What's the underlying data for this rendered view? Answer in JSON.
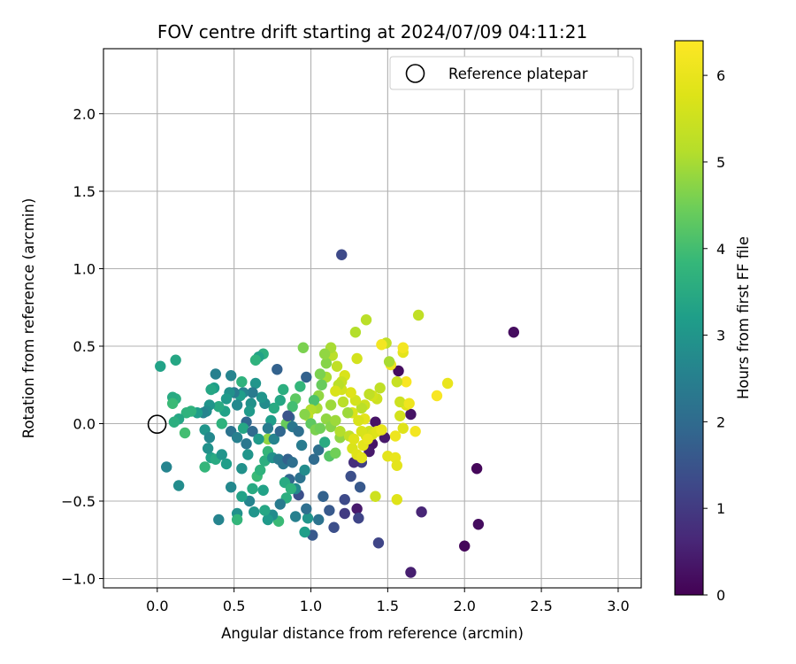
{
  "chart_data": {
    "type": "scatter",
    "title": "FOV centre drift starting at 2024/07/09 04:11:21",
    "xlabel": "Angular distance from reference (arcmin)",
    "ylabel": "Rotation from reference (arcmin)",
    "xlim": [
      -0.35,
      3.15
    ],
    "ylim": [
      -1.06,
      2.42
    ],
    "xticks": [
      "0.0",
      "0.5",
      "1.0",
      "1.5",
      "2.0",
      "2.5",
      "3.0"
    ],
    "xtick_values": [
      0.0,
      0.5,
      1.0,
      1.5,
      2.0,
      2.5,
      3.0
    ],
    "yticks": [
      "−1.0",
      "−0.5",
      "0.0",
      "0.5",
      "1.0",
      "1.5",
      "2.0"
    ],
    "ytick_values": [
      -1.0,
      -0.5,
      0.0,
      0.5,
      1.0,
      1.5,
      2.0
    ],
    "grid": true,
    "legend": {
      "position": "top-right",
      "entries": [
        {
          "label": "Reference platepar",
          "marker": "open-circle"
        }
      ]
    },
    "reference_point": {
      "x": 0.0,
      "y": 0.0
    },
    "colorbar": {
      "label": "Hours from first FF file",
      "colormap": "viridis",
      "range": [
        0,
        6.4
      ],
      "ticks": [
        "0",
        "1",
        "2",
        "3",
        "4",
        "5",
        "6"
      ],
      "tick_values": [
        0,
        1,
        2,
        3,
        4,
        5,
        6
      ]
    },
    "points": [
      {
        "x": 1.2,
        "y": 1.09,
        "c": 1.3
      },
      {
        "x": 2.32,
        "y": 0.59,
        "c": 0.2
      },
      {
        "x": 2.08,
        "y": -0.29,
        "c": 0.1
      },
      {
        "x": 2.09,
        "y": -0.65,
        "c": 0.2
      },
      {
        "x": 2.0,
        "y": -0.79,
        "c": 0.1
      },
      {
        "x": 1.65,
        "y": -0.96,
        "c": 0.5
      },
      {
        "x": 1.72,
        "y": -0.57,
        "c": 0.6
      },
      {
        "x": 1.44,
        "y": -0.77,
        "c": 1.2
      },
      {
        "x": 1.65,
        "y": 0.06,
        "c": 0.3
      },
      {
        "x": 1.57,
        "y": 0.34,
        "c": 0.2
      },
      {
        "x": 1.48,
        "y": -0.09,
        "c": 0.4
      },
      {
        "x": 1.4,
        "y": -0.13,
        "c": 0.3
      },
      {
        "x": 1.38,
        "y": -0.18,
        "c": 0.4
      },
      {
        "x": 1.42,
        "y": 0.01,
        "c": 0.3
      },
      {
        "x": 1.3,
        "y": -0.55,
        "c": 0.4
      },
      {
        "x": 1.31,
        "y": -0.61,
        "c": 1.2
      },
      {
        "x": 1.22,
        "y": -0.58,
        "c": 1.0
      },
      {
        "x": 1.32,
        "y": -0.41,
        "c": 1.6
      },
      {
        "x": 1.26,
        "y": -0.34,
        "c": 1.4
      },
      {
        "x": 1.33,
        "y": -0.25,
        "c": 1.1
      },
      {
        "x": 1.28,
        "y": -0.25,
        "c": 0.8
      },
      {
        "x": 1.22,
        "y": -0.49,
        "c": 1.3
      },
      {
        "x": 1.15,
        "y": -0.67,
        "c": 1.4
      },
      {
        "x": 1.12,
        "y": -0.56,
        "c": 1.6
      },
      {
        "x": 1.08,
        "y": -0.47,
        "c": 1.8
      },
      {
        "x": 1.05,
        "y": -0.62,
        "c": 2.2
      },
      {
        "x": 1.01,
        "y": -0.72,
        "c": 1.6
      },
      {
        "x": 0.96,
        "y": -0.7,
        "c": 3.2
      },
      {
        "x": 0.9,
        "y": -0.6,
        "c": 2.5
      },
      {
        "x": 0.98,
        "y": -0.61,
        "c": 3.0
      },
      {
        "x": 0.97,
        "y": -0.55,
        "c": 2.1
      },
      {
        "x": 0.92,
        "y": -0.46,
        "c": 1.4
      },
      {
        "x": 0.9,
        "y": -0.42,
        "c": 2.7
      },
      {
        "x": 0.86,
        "y": -0.36,
        "c": 1.9
      },
      {
        "x": 0.84,
        "y": -0.48,
        "c": 3.6
      },
      {
        "x": 0.8,
        "y": -0.52,
        "c": 2.4
      },
      {
        "x": 0.79,
        "y": -0.63,
        "c": 3.9
      },
      {
        "x": 0.75,
        "y": -0.59,
        "c": 2.8
      },
      {
        "x": 0.72,
        "y": -0.62,
        "c": 3.1
      },
      {
        "x": 0.7,
        "y": -0.56,
        "c": 3.4
      },
      {
        "x": 0.63,
        "y": -0.57,
        "c": 3.0
      },
      {
        "x": 0.6,
        "y": -0.5,
        "c": 2.6
      },
      {
        "x": 0.55,
        "y": -0.47,
        "c": 3.3
      },
      {
        "x": 0.52,
        "y": -0.58,
        "c": 2.9
      },
      {
        "x": 0.52,
        "y": -0.62,
        "c": 3.8
      },
      {
        "x": 0.4,
        "y": -0.62,
        "c": 2.6
      },
      {
        "x": 0.48,
        "y": -0.41,
        "c": 2.7
      },
      {
        "x": 0.55,
        "y": -0.29,
        "c": 2.9
      },
      {
        "x": 0.59,
        "y": -0.2,
        "c": 3.0
      },
      {
        "x": 0.62,
        "y": -0.42,
        "c": 3.5
      },
      {
        "x": 0.65,
        "y": -0.34,
        "c": 3.9
      },
      {
        "x": 0.67,
        "y": -0.3,
        "c": 3.7
      },
      {
        "x": 0.69,
        "y": -0.43,
        "c": 3.3
      },
      {
        "x": 0.7,
        "y": -0.24,
        "c": 3.6
      },
      {
        "x": 0.72,
        "y": -0.18,
        "c": 3.8
      },
      {
        "x": 0.75,
        "y": -0.22,
        "c": 2.9
      },
      {
        "x": 0.79,
        "y": -0.23,
        "c": 2.4
      },
      {
        "x": 0.82,
        "y": -0.26,
        "c": 2.3
      },
      {
        "x": 0.85,
        "y": -0.23,
        "c": 1.8
      },
      {
        "x": 0.88,
        "y": -0.25,
        "c": 2.1
      },
      {
        "x": 0.83,
        "y": -0.38,
        "c": 3.5
      },
      {
        "x": 0.87,
        "y": -0.42,
        "c": 3.7
      },
      {
        "x": 0.93,
        "y": -0.35,
        "c": 2.2
      },
      {
        "x": 0.96,
        "y": -0.3,
        "c": 2.8
      },
      {
        "x": 1.02,
        "y": -0.23,
        "c": 2.0
      },
      {
        "x": 1.05,
        "y": -0.17,
        "c": 2.1
      },
      {
        "x": 1.09,
        "y": -0.12,
        "c": 3.5
      },
      {
        "x": 1.12,
        "y": -0.21,
        "c": 4.2
      },
      {
        "x": 1.16,
        "y": -0.19,
        "c": 4.5
      },
      {
        "x": 1.19,
        "y": -0.09,
        "c": 4.8
      },
      {
        "x": 1.25,
        "y": -0.08,
        "c": 5.3
      },
      {
        "x": 1.27,
        "y": -0.16,
        "c": 5.7
      },
      {
        "x": 1.3,
        "y": -0.2,
        "c": 5.8
      },
      {
        "x": 1.33,
        "y": -0.22,
        "c": 5.9
      },
      {
        "x": 1.36,
        "y": -0.08,
        "c": 5.6
      },
      {
        "x": 1.38,
        "y": -0.05,
        "c": 5.5
      },
      {
        "x": 1.4,
        "y": -0.07,
        "c": 5.7
      },
      {
        "x": 1.43,
        "y": -0.05,
        "c": 5.8
      },
      {
        "x": 1.46,
        "y": -0.04,
        "c": 6.0
      },
      {
        "x": 1.5,
        "y": -0.21,
        "c": 5.9
      },
      {
        "x": 1.55,
        "y": -0.22,
        "c": 6.0
      },
      {
        "x": 1.56,
        "y": -0.27,
        "c": 5.9
      },
      {
        "x": 1.56,
        "y": -0.49,
        "c": 5.8
      },
      {
        "x": 1.42,
        "y": -0.47,
        "c": 5.5
      },
      {
        "x": 1.55,
        "y": -0.08,
        "c": 6.1
      },
      {
        "x": 1.6,
        "y": -0.03,
        "c": 5.8
      },
      {
        "x": 1.68,
        "y": -0.05,
        "c": 6.2
      },
      {
        "x": 1.62,
        "y": 0.12,
        "c": 5.8
      },
      {
        "x": 1.58,
        "y": 0.05,
        "c": 5.6
      },
      {
        "x": 1.58,
        "y": 0.14,
        "c": 5.5
      },
      {
        "x": 1.64,
        "y": 0.13,
        "c": 6.1
      },
      {
        "x": 1.62,
        "y": 0.27,
        "c": 6.3
      },
      {
        "x": 1.6,
        "y": 0.46,
        "c": 5.9
      },
      {
        "x": 1.6,
        "y": 0.49,
        "c": 6.2
      },
      {
        "x": 1.56,
        "y": 0.27,
        "c": 5.4
      },
      {
        "x": 1.52,
        "y": 0.38,
        "c": 6.1
      },
      {
        "x": 1.51,
        "y": 0.4,
        "c": 5.0
      },
      {
        "x": 1.49,
        "y": 0.52,
        "c": 5.3
      },
      {
        "x": 1.46,
        "y": 0.51,
        "c": 6.2
      },
      {
        "x": 1.45,
        "y": 0.23,
        "c": 5.3
      },
      {
        "x": 1.43,
        "y": 0.16,
        "c": 5.5
      },
      {
        "x": 1.4,
        "y": 0.18,
        "c": 5.6
      },
      {
        "x": 1.38,
        "y": 0.19,
        "c": 5.3
      },
      {
        "x": 1.35,
        "y": 0.12,
        "c": 5.5
      },
      {
        "x": 1.35,
        "y": 0.03,
        "c": 5.9
      },
      {
        "x": 1.31,
        "y": 0.02,
        "c": 5.7
      },
      {
        "x": 1.33,
        "y": 0.1,
        "c": 5.2
      },
      {
        "x": 1.29,
        "y": 0.15,
        "c": 5.6
      },
      {
        "x": 1.26,
        "y": 0.2,
        "c": 5.8
      },
      {
        "x": 1.27,
        "y": 0.07,
        "c": 5.7
      },
      {
        "x": 1.24,
        "y": 0.07,
        "c": 4.9
      },
      {
        "x": 1.21,
        "y": 0.14,
        "c": 5.2
      },
      {
        "x": 1.2,
        "y": 0.22,
        "c": 5.6
      },
      {
        "x": 1.22,
        "y": 0.31,
        "c": 5.7
      },
      {
        "x": 1.2,
        "y": 0.27,
        "c": 5.4
      },
      {
        "x": 1.18,
        "y": 0.25,
        "c": 5.2
      },
      {
        "x": 1.17,
        "y": 0.37,
        "c": 5.3
      },
      {
        "x": 1.16,
        "y": 0.21,
        "c": 5.7
      },
      {
        "x": 1.13,
        "y": 0.12,
        "c": 4.9
      },
      {
        "x": 1.14,
        "y": 0.44,
        "c": 5.2
      },
      {
        "x": 1.13,
        "y": 0.49,
        "c": 5.0
      },
      {
        "x": 1.1,
        "y": 0.39,
        "c": 4.7
      },
      {
        "x": 1.09,
        "y": 0.45,
        "c": 4.8
      },
      {
        "x": 1.1,
        "y": 0.3,
        "c": 5.0
      },
      {
        "x": 1.07,
        "y": 0.25,
        "c": 4.4
      },
      {
        "x": 1.06,
        "y": 0.32,
        "c": 4.6
      },
      {
        "x": 1.05,
        "y": 0.18,
        "c": 4.8
      },
      {
        "x": 1.04,
        "y": 0.1,
        "c": 5.0
      },
      {
        "x": 1.02,
        "y": 0.15,
        "c": 4.1
      },
      {
        "x": 1.0,
        "y": 0.09,
        "c": 5.1
      },
      {
        "x": 0.98,
        "y": 0.05,
        "c": 5.3
      },
      {
        "x": 0.96,
        "y": 0.06,
        "c": 4.7
      },
      {
        "x": 0.95,
        "y": 0.49,
        "c": 4.6
      },
      {
        "x": 0.97,
        "y": 0.3,
        "c": 1.8
      },
      {
        "x": 0.93,
        "y": 0.24,
        "c": 3.8
      },
      {
        "x": 0.9,
        "y": 0.16,
        "c": 4.3
      },
      {
        "x": 0.88,
        "y": 0.11,
        "c": 4.0
      },
      {
        "x": 0.86,
        "y": 0.04,
        "c": 2.0
      },
      {
        "x": 0.84,
        "y": 0.0,
        "c": 4.4
      },
      {
        "x": 0.82,
        "y": 0.22,
        "c": 3.6
      },
      {
        "x": 0.8,
        "y": 0.15,
        "c": 3.4
      },
      {
        "x": 0.78,
        "y": 0.35,
        "c": 1.8
      },
      {
        "x": 0.76,
        "y": 0.1,
        "c": 3.5
      },
      {
        "x": 0.74,
        "y": 0.02,
        "c": 3.2
      },
      {
        "x": 0.72,
        "y": -0.03,
        "c": 2.4
      },
      {
        "x": 0.72,
        "y": -0.1,
        "c": 4.8
      },
      {
        "x": 0.7,
        "y": 0.13,
        "c": 2.8
      },
      {
        "x": 0.68,
        "y": 0.17,
        "c": 3.0
      },
      {
        "x": 0.69,
        "y": 0.45,
        "c": 3.6
      },
      {
        "x": 0.66,
        "y": 0.43,
        "c": 3.3
      },
      {
        "x": 0.64,
        "y": 0.41,
        "c": 3.7
      },
      {
        "x": 0.64,
        "y": 0.26,
        "c": 3.0
      },
      {
        "x": 0.62,
        "y": 0.2,
        "c": 2.4
      },
      {
        "x": 0.61,
        "y": 0.13,
        "c": 2.9
      },
      {
        "x": 0.6,
        "y": 0.08,
        "c": 3.1
      },
      {
        "x": 0.58,
        "y": 0.01,
        "c": 1.9
      },
      {
        "x": 0.56,
        "y": 0.2,
        "c": 2.6
      },
      {
        "x": 0.55,
        "y": 0.27,
        "c": 3.7
      },
      {
        "x": 0.54,
        "y": 0.18,
        "c": 3.2
      },
      {
        "x": 0.52,
        "y": 0.12,
        "c": 2.7
      },
      {
        "x": 0.5,
        "y": 0.2,
        "c": 2.4
      },
      {
        "x": 0.48,
        "y": 0.31,
        "c": 2.6
      },
      {
        "x": 0.47,
        "y": 0.2,
        "c": 2.9
      },
      {
        "x": 0.45,
        "y": 0.16,
        "c": 3.1
      },
      {
        "x": 0.44,
        "y": 0.08,
        "c": 3.3
      },
      {
        "x": 0.42,
        "y": 0.0,
        "c": 3.7
      },
      {
        "x": 0.4,
        "y": 0.11,
        "c": 3.5
      },
      {
        "x": 0.38,
        "y": 0.32,
        "c": 2.5
      },
      {
        "x": 0.37,
        "y": 0.23,
        "c": 3.2
      },
      {
        "x": 0.35,
        "y": 0.22,
        "c": 3.4
      },
      {
        "x": 0.34,
        "y": 0.12,
        "c": 3.0
      },
      {
        "x": 0.32,
        "y": 0.08,
        "c": 2.8
      },
      {
        "x": 0.3,
        "y": 0.07,
        "c": 2.6
      },
      {
        "x": 0.31,
        "y": -0.04,
        "c": 3.0
      },
      {
        "x": 0.34,
        "y": -0.09,
        "c": 2.7
      },
      {
        "x": 0.35,
        "y": -0.22,
        "c": 3.3
      },
      {
        "x": 0.31,
        "y": -0.28,
        "c": 3.8
      },
      {
        "x": 0.33,
        "y": -0.16,
        "c": 2.9
      },
      {
        "x": 0.38,
        "y": -0.23,
        "c": 3.5
      },
      {
        "x": 0.42,
        "y": -0.2,
        "c": 3.0
      },
      {
        "x": 0.45,
        "y": -0.26,
        "c": 3.2
      },
      {
        "x": 0.48,
        "y": -0.05,
        "c": 2.2
      },
      {
        "x": 0.52,
        "y": -0.09,
        "c": 2.5
      },
      {
        "x": 0.56,
        "y": -0.03,
        "c": 3.4
      },
      {
        "x": 0.58,
        "y": -0.13,
        "c": 2.3
      },
      {
        "x": 0.62,
        "y": -0.05,
        "c": 2.0
      },
      {
        "x": 0.66,
        "y": -0.1,
        "c": 3.1
      },
      {
        "x": 0.76,
        "y": -0.1,
        "c": 2.6
      },
      {
        "x": 0.8,
        "y": -0.05,
        "c": 1.9
      },
      {
        "x": 0.85,
        "y": 0.05,
        "c": 1.5
      },
      {
        "x": 0.88,
        "y": -0.02,
        "c": 2.3
      },
      {
        "x": 0.92,
        "y": -0.05,
        "c": 2.1
      },
      {
        "x": 0.94,
        "y": -0.14,
        "c": 2.4
      },
      {
        "x": 1.0,
        "y": 0.0,
        "c": 4.3
      },
      {
        "x": 1.03,
        "y": -0.04,
        "c": 4.6
      },
      {
        "x": 1.06,
        "y": -0.03,
        "c": 4.5
      },
      {
        "x": 1.1,
        "y": 0.03,
        "c": 4.8
      },
      {
        "x": 1.13,
        "y": -0.02,
        "c": 4.7
      },
      {
        "x": 1.16,
        "y": 0.02,
        "c": 4.9
      },
      {
        "x": 1.19,
        "y": -0.05,
        "c": 5.1
      },
      {
        "x": 0.26,
        "y": 0.07,
        "c": 3.2
      },
      {
        "x": 0.19,
        "y": 0.07,
        "c": 3.7
      },
      {
        "x": 0.14,
        "y": 0.03,
        "c": 3.4
      },
      {
        "x": 0.12,
        "y": 0.16,
        "c": 3.6
      },
      {
        "x": 0.1,
        "y": 0.17,
        "c": 3.5
      },
      {
        "x": 0.1,
        "y": 0.13,
        "c": 3.9
      },
      {
        "x": 0.12,
        "y": 0.41,
        "c": 3.4
      },
      {
        "x": 0.02,
        "y": 0.37,
        "c": 3.3
      },
      {
        "x": 0.06,
        "y": -0.28,
        "c": 2.6
      },
      {
        "x": 0.14,
        "y": -0.4,
        "c": 2.8
      },
      {
        "x": 0.18,
        "y": -0.06,
        "c": 4.0
      },
      {
        "x": 0.22,
        "y": 0.08,
        "c": 3.7
      },
      {
        "x": 0.11,
        "y": 0.01,
        "c": 3.6
      },
      {
        "x": 1.3,
        "y": 0.42,
        "c": 5.6
      },
      {
        "x": 1.36,
        "y": 0.67,
        "c": 5.2
      },
      {
        "x": 1.7,
        "y": 0.7,
        "c": 5.3
      },
      {
        "x": 1.29,
        "y": 0.59,
        "c": 5.1
      },
      {
        "x": 1.82,
        "y": 0.18,
        "c": 6.3
      },
      {
        "x": 1.89,
        "y": 0.26,
        "c": 6.0
      },
      {
        "x": 1.33,
        "y": -0.05,
        "c": 5.7
      },
      {
        "x": 1.28,
        "y": -0.1,
        "c": 5.8
      },
      {
        "x": 1.34,
        "y": -0.14,
        "c": 5.9
      },
      {
        "x": 1.37,
        "y": -0.1,
        "c": 6.0
      }
    ]
  }
}
